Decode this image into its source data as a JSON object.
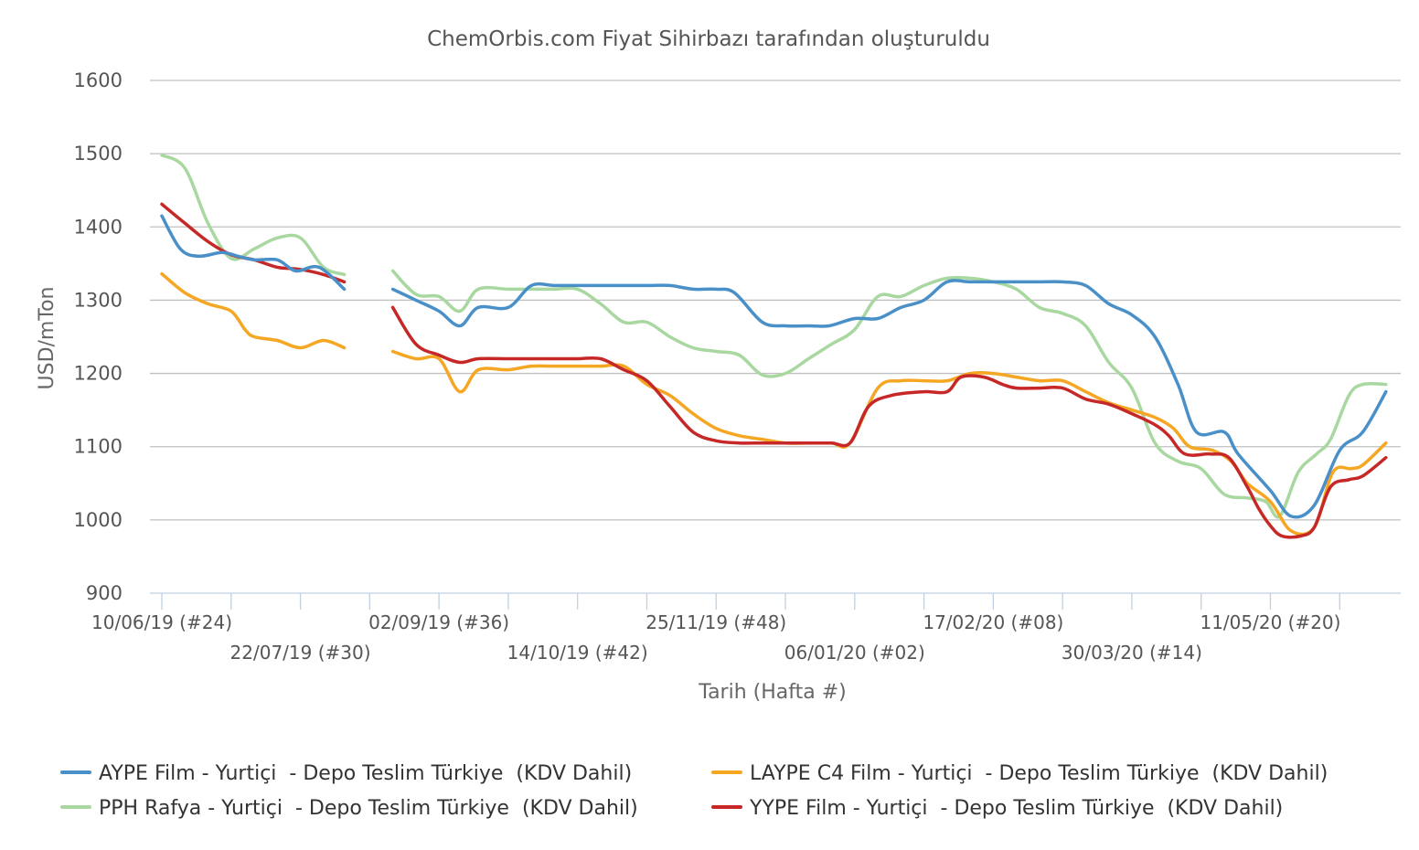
{
  "chart_data": {
    "type": "line",
    "title": "ChemOrbis.com Fiyat Sihirbazı tarafından oluşturuldu",
    "xlabel": "Tarih (Hafta #)",
    "ylabel": "USD/mTon",
    "ylim": [
      900,
      1600
    ],
    "yticks": [
      900,
      1000,
      1100,
      1200,
      1300,
      1400,
      1500,
      1600
    ],
    "grid": true,
    "legend_position": "bottom",
    "week_labels": [
      "10/06/19 (#24)",
      "22/07/19 (#30)",
      "02/09/19 (#36)",
      "14/10/19 (#42)",
      "25/11/19 (#48)",
      "06/01/20 (#02)",
      "17/02/20 (#08)",
      "30/03/20 (#14)",
      "11/05/20 (#20)"
    ],
    "x_tick_labels": [
      {
        "week": 0,
        "label": "10/06/19 (#24)",
        "row": 0
      },
      {
        "week": 6,
        "label": "22/07/19 (#30)",
        "row": 1
      },
      {
        "week": 12,
        "label": "02/09/19 (#36)",
        "row": 0
      },
      {
        "week": 18,
        "label": "14/10/19 (#42)",
        "row": 1
      },
      {
        "week": 24,
        "label": "25/11/19 (#48)",
        "row": 0
      },
      {
        "week": 30,
        "label": "06/01/20 (#02)",
        "row": 1
      },
      {
        "week": 36,
        "label": "17/02/20 (#08)",
        "row": 0
      },
      {
        "week": 42,
        "label": "30/03/20 (#14)",
        "row": 1
      },
      {
        "week": 48,
        "label": "11/05/20 (#20)",
        "row": 0
      }
    ],
    "series": [
      {
        "name": "AYPE Film - Yurtiçi  - Depo Teslim Türkiye  (KDV Dahil)",
        "color": "#4a90c8",
        "points": [
          [
            0,
            1415
          ],
          [
            0.8,
            1370
          ],
          [
            1.6,
            1360
          ],
          [
            2.6,
            1365
          ],
          [
            3.3,
            1360
          ],
          [
            4,
            1355
          ],
          [
            5,
            1355
          ],
          [
            5.8,
            1340
          ],
          [
            6.8,
            1345
          ],
          [
            7.9,
            1315
          ],
          null,
          [
            10,
            1315
          ],
          [
            11,
            1300
          ],
          [
            12,
            1285
          ],
          [
            12.9,
            1265
          ],
          [
            13.7,
            1290
          ],
          [
            15,
            1290
          ],
          [
            16,
            1320
          ],
          [
            17,
            1320
          ],
          [
            18,
            1320
          ],
          [
            19,
            1320
          ],
          [
            20,
            1320
          ],
          [
            21,
            1320
          ],
          [
            22,
            1320
          ],
          [
            23,
            1315
          ],
          [
            24,
            1315
          ],
          [
            24.8,
            1310
          ],
          [
            26,
            1270
          ],
          [
            27,
            1265
          ],
          [
            28,
            1265
          ],
          [
            28.9,
            1265
          ],
          [
            30,
            1275
          ],
          [
            31,
            1275
          ],
          [
            32,
            1290
          ],
          [
            33,
            1300
          ],
          [
            34,
            1325
          ],
          [
            35,
            1325
          ],
          [
            36,
            1325
          ],
          [
            37,
            1325
          ],
          [
            38,
            1325
          ],
          [
            39,
            1325
          ],
          [
            40,
            1320
          ],
          [
            41,
            1295
          ],
          [
            42,
            1280
          ],
          [
            43,
            1250
          ],
          [
            44,
            1185
          ],
          [
            44.8,
            1120
          ],
          [
            46,
            1120
          ],
          [
            46.6,
            1090
          ],
          [
            48,
            1040
          ],
          [
            48.9,
            1005
          ],
          [
            49.9,
            1020
          ],
          [
            51,
            1095
          ],
          [
            52,
            1120
          ],
          [
            53,
            1175
          ]
        ]
      },
      {
        "name": "LAYPE C4 Film - Yurtiçi  - Depo Teslim Türkiye  (KDV Dahil)",
        "color": "#f5a623",
        "points": [
          [
            0,
            1336
          ],
          [
            1,
            1310
          ],
          [
            2,
            1295
          ],
          [
            3,
            1285
          ],
          [
            3.6,
            1260
          ],
          [
            4,
            1250
          ],
          [
            5,
            1245
          ],
          [
            6,
            1235
          ],
          [
            7,
            1245
          ],
          [
            7.9,
            1235
          ],
          null,
          [
            10,
            1230
          ],
          [
            11,
            1220
          ],
          [
            12,
            1220
          ],
          [
            12.9,
            1175
          ],
          [
            13.7,
            1205
          ],
          [
            15,
            1205
          ],
          [
            16,
            1210
          ],
          [
            17,
            1210
          ],
          [
            18,
            1210
          ],
          [
            19,
            1210
          ],
          [
            20,
            1210
          ],
          [
            21,
            1185
          ],
          [
            22,
            1170
          ],
          [
            23,
            1145
          ],
          [
            24,
            1125
          ],
          [
            25,
            1115
          ],
          [
            26,
            1110
          ],
          [
            27,
            1105
          ],
          [
            28,
            1105
          ],
          [
            29,
            1105
          ],
          [
            29.8,
            1105
          ],
          [
            31,
            1180
          ],
          [
            32,
            1190
          ],
          [
            33,
            1190
          ],
          [
            34,
            1190
          ],
          [
            35,
            1200
          ],
          [
            36,
            1200
          ],
          [
            37,
            1195
          ],
          [
            38,
            1190
          ],
          [
            39,
            1190
          ],
          [
            40,
            1175
          ],
          [
            41,
            1160
          ],
          [
            42,
            1150
          ],
          [
            43,
            1140
          ],
          [
            43.8,
            1125
          ],
          [
            44.5,
            1100
          ],
          [
            45.5,
            1095
          ],
          [
            46.3,
            1080
          ],
          [
            47,
            1050
          ],
          [
            48,
            1025
          ],
          [
            48.9,
            985
          ],
          [
            49.9,
            990
          ],
          [
            50.7,
            1065
          ],
          [
            51.5,
            1070
          ],
          [
            52,
            1075
          ],
          [
            53,
            1105
          ]
        ]
      },
      {
        "name": "PPH Rafya - Yurtiçi  - Depo Teslim Türkiye  (KDV Dahil)",
        "color": "#a8d8a0",
        "points": [
          [
            0,
            1498
          ],
          [
            1,
            1480
          ],
          [
            2,
            1405
          ],
          [
            3,
            1357
          ],
          [
            4,
            1370
          ],
          [
            5,
            1385
          ],
          [
            6,
            1385
          ],
          [
            7,
            1345
          ],
          [
            7.9,
            1335
          ],
          null,
          [
            10,
            1340
          ],
          [
            11,
            1308
          ],
          [
            12,
            1305
          ],
          [
            12.9,
            1285
          ],
          [
            13.7,
            1315
          ],
          [
            15,
            1315
          ],
          [
            16,
            1315
          ],
          [
            17,
            1315
          ],
          [
            18,
            1315
          ],
          [
            19,
            1295
          ],
          [
            20,
            1270
          ],
          [
            21,
            1270
          ],
          [
            22,
            1250
          ],
          [
            23,
            1235
          ],
          [
            24,
            1230
          ],
          [
            25,
            1225
          ],
          [
            26,
            1198
          ],
          [
            27,
            1200
          ],
          [
            28,
            1220
          ],
          [
            29,
            1240
          ],
          [
            30,
            1260
          ],
          [
            31,
            1305
          ],
          [
            32,
            1305
          ],
          [
            33,
            1320
          ],
          [
            34,
            1330
          ],
          [
            35,
            1330
          ],
          [
            36,
            1325
          ],
          [
            37,
            1315
          ],
          [
            38,
            1290
          ],
          [
            39,
            1282
          ],
          [
            40,
            1265
          ],
          [
            41,
            1215
          ],
          [
            42,
            1180
          ],
          [
            43,
            1105
          ],
          [
            44,
            1080
          ],
          [
            45,
            1070
          ],
          [
            46,
            1035
          ],
          [
            47,
            1030
          ],
          [
            47.8,
            1025
          ],
          [
            48.4,
            1005
          ],
          [
            49.2,
            1065
          ],
          [
            50,
            1090
          ],
          [
            50.6,
            1110
          ],
          [
            51.4,
            1170
          ],
          [
            52,
            1185
          ],
          [
            53,
            1185
          ]
        ]
      },
      {
        "name": "YYPE Film - Yurtiçi  - Depo Teslim Türkiye  (KDV Dahil)",
        "color": "#c62828",
        "points": [
          [
            0,
            1431
          ],
          [
            1,
            1405
          ],
          [
            2,
            1380
          ],
          [
            3,
            1362
          ],
          [
            4,
            1355
          ],
          [
            5,
            1345
          ],
          [
            6,
            1342
          ],
          [
            7,
            1335
          ],
          [
            7.9,
            1325
          ],
          null,
          [
            10,
            1290
          ],
          [
            11,
            1240
          ],
          [
            12,
            1225
          ],
          [
            12.9,
            1215
          ],
          [
            13.7,
            1220
          ],
          [
            15,
            1220
          ],
          [
            16,
            1220
          ],
          [
            17,
            1220
          ],
          [
            18,
            1220
          ],
          [
            19,
            1220
          ],
          [
            20,
            1205
          ],
          [
            21,
            1190
          ],
          [
            22,
            1155
          ],
          [
            23,
            1120
          ],
          [
            24,
            1108
          ],
          [
            25,
            1105
          ],
          [
            26,
            1105
          ],
          [
            27,
            1105
          ],
          [
            28,
            1105
          ],
          [
            29,
            1105
          ],
          [
            29.8,
            1105
          ],
          [
            30.6,
            1155
          ],
          [
            31.6,
            1170
          ],
          [
            33,
            1175
          ],
          [
            34,
            1175
          ],
          [
            34.6,
            1195
          ],
          [
            35.6,
            1195
          ],
          [
            36.4,
            1185
          ],
          [
            37,
            1180
          ],
          [
            38,
            1180
          ],
          [
            39,
            1180
          ],
          [
            40,
            1165
          ],
          [
            41,
            1158
          ],
          [
            42,
            1145
          ],
          [
            43,
            1130
          ],
          [
            43.6,
            1115
          ],
          [
            44.3,
            1090
          ],
          [
            45.4,
            1090
          ],
          [
            46.2,
            1085
          ],
          [
            47,
            1045
          ],
          [
            47.5,
            1015
          ],
          [
            48,
            992
          ],
          [
            48.5,
            978
          ],
          [
            49.3,
            978
          ],
          [
            49.9,
            990
          ],
          [
            50.6,
            1045
          ],
          [
            51.4,
            1055
          ],
          [
            52,
            1060
          ],
          [
            53,
            1085
          ]
        ]
      }
    ]
  }
}
